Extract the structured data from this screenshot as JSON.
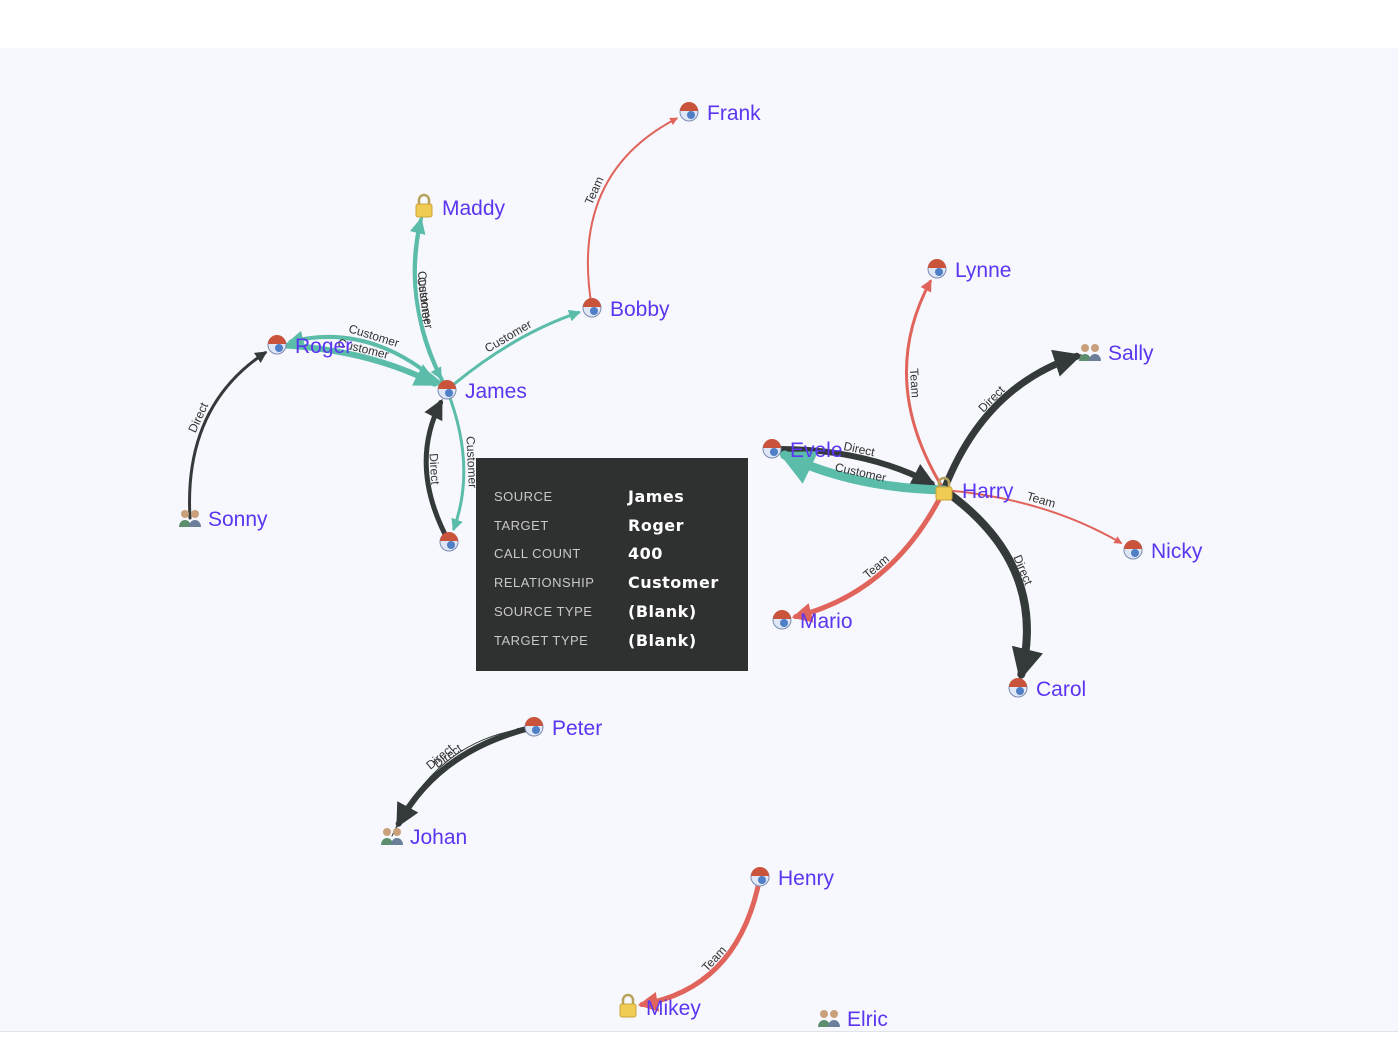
{
  "colors": {
    "customer": "#5bbcaa",
    "team": "#e0645b",
    "direct": "#343a3a",
    "label": "#5b35f0",
    "tooltip_bg": "#2f3030"
  },
  "nodes": [
    {
      "id": "frank",
      "label": "Frank",
      "icon": "person-icon"
    },
    {
      "id": "maddy",
      "label": "Maddy",
      "icon": "lock-icon"
    },
    {
      "id": "bobby",
      "label": "Bobby",
      "icon": "person-icon"
    },
    {
      "id": "roger",
      "label": "Roger",
      "icon": "person-icon"
    },
    {
      "id": "james",
      "label": "James",
      "icon": "person-icon"
    },
    {
      "id": "lynne",
      "label": "Lynne",
      "icon": "person-icon"
    },
    {
      "id": "sally",
      "label": "Sally",
      "icon": "group-icon"
    },
    {
      "id": "evele",
      "label": "Evele",
      "icon": "person-icon"
    },
    {
      "id": "harry",
      "label": "Harry",
      "icon": "lock-icon"
    },
    {
      "id": "nicky",
      "label": "Nicky",
      "icon": "person-icon"
    },
    {
      "id": "sonny",
      "label": "Sonny",
      "icon": "group-icon"
    },
    {
      "id": "node_hidden",
      "label": "",
      "icon": "person-icon"
    },
    {
      "id": "mario",
      "label": "Mario",
      "icon": "person-icon"
    },
    {
      "id": "carol",
      "label": "Carol",
      "icon": "person-icon"
    },
    {
      "id": "peter",
      "label": "Peter",
      "icon": "person-icon"
    },
    {
      "id": "johan",
      "label": "Johan",
      "icon": "group-icon"
    },
    {
      "id": "henry",
      "label": "Henry",
      "icon": "person-icon"
    },
    {
      "id": "mikey",
      "label": "Mikey",
      "icon": "lock-icon"
    },
    {
      "id": "elric",
      "label": "Elric",
      "icon": "group-icon"
    }
  ],
  "edges": [
    {
      "from": "bobby",
      "to": "frank",
      "type": "team",
      "label": "Team"
    },
    {
      "from": "james",
      "to": "maddy",
      "type": "customer",
      "label": "Customer"
    },
    {
      "from": "maddy",
      "to": "james",
      "type": "customer",
      "label": "Customer"
    },
    {
      "from": "james",
      "to": "roger",
      "type": "customer",
      "label": "Customer"
    },
    {
      "from": "roger",
      "to": "james",
      "type": "customer",
      "label": "Customer"
    },
    {
      "from": "james",
      "to": "bobby",
      "type": "customer",
      "label": "Customer"
    },
    {
      "from": "sonny",
      "to": "roger",
      "type": "direct",
      "label": "Direct"
    },
    {
      "from": "node_hidden",
      "to": "james",
      "type": "direct",
      "label": "Direct"
    },
    {
      "from": "james",
      "to": "node_hidden",
      "type": "customer",
      "label": "Customer"
    },
    {
      "from": "harry",
      "to": "lynne",
      "type": "team",
      "label": "Team"
    },
    {
      "from": "harry",
      "to": "sally",
      "type": "direct",
      "label": "Direct"
    },
    {
      "from": "harry",
      "to": "nicky",
      "type": "team",
      "label": "Team"
    },
    {
      "from": "harry",
      "to": "carol",
      "type": "direct",
      "label": "Direct"
    },
    {
      "from": "evele",
      "to": "harry",
      "type": "direct",
      "label": "Direct"
    },
    {
      "from": "harry",
      "to": "evele",
      "type": "customer",
      "label": "Customer"
    },
    {
      "from": "harry",
      "to": "mario",
      "type": "team",
      "label": "Team"
    },
    {
      "from": "peter",
      "to": "johan",
      "type": "direct",
      "label": "Direct"
    },
    {
      "from": "johan",
      "to": "peter",
      "type": "direct",
      "label": "Direct"
    },
    {
      "from": "henry",
      "to": "mikey",
      "type": "team",
      "label": "Team"
    }
  ],
  "tooltip": {
    "rows": [
      {
        "key": "SOURCE",
        "value": "James"
      },
      {
        "key": "TARGET",
        "value": "Roger"
      },
      {
        "key": "CALL COUNT",
        "value": "400"
      },
      {
        "key": "RELATIONSHIP",
        "value": "Customer"
      },
      {
        "key": "SOURCE TYPE",
        "value": "(Blank)"
      },
      {
        "key": "TARGET TYPE",
        "value": "(Blank)"
      }
    ]
  }
}
